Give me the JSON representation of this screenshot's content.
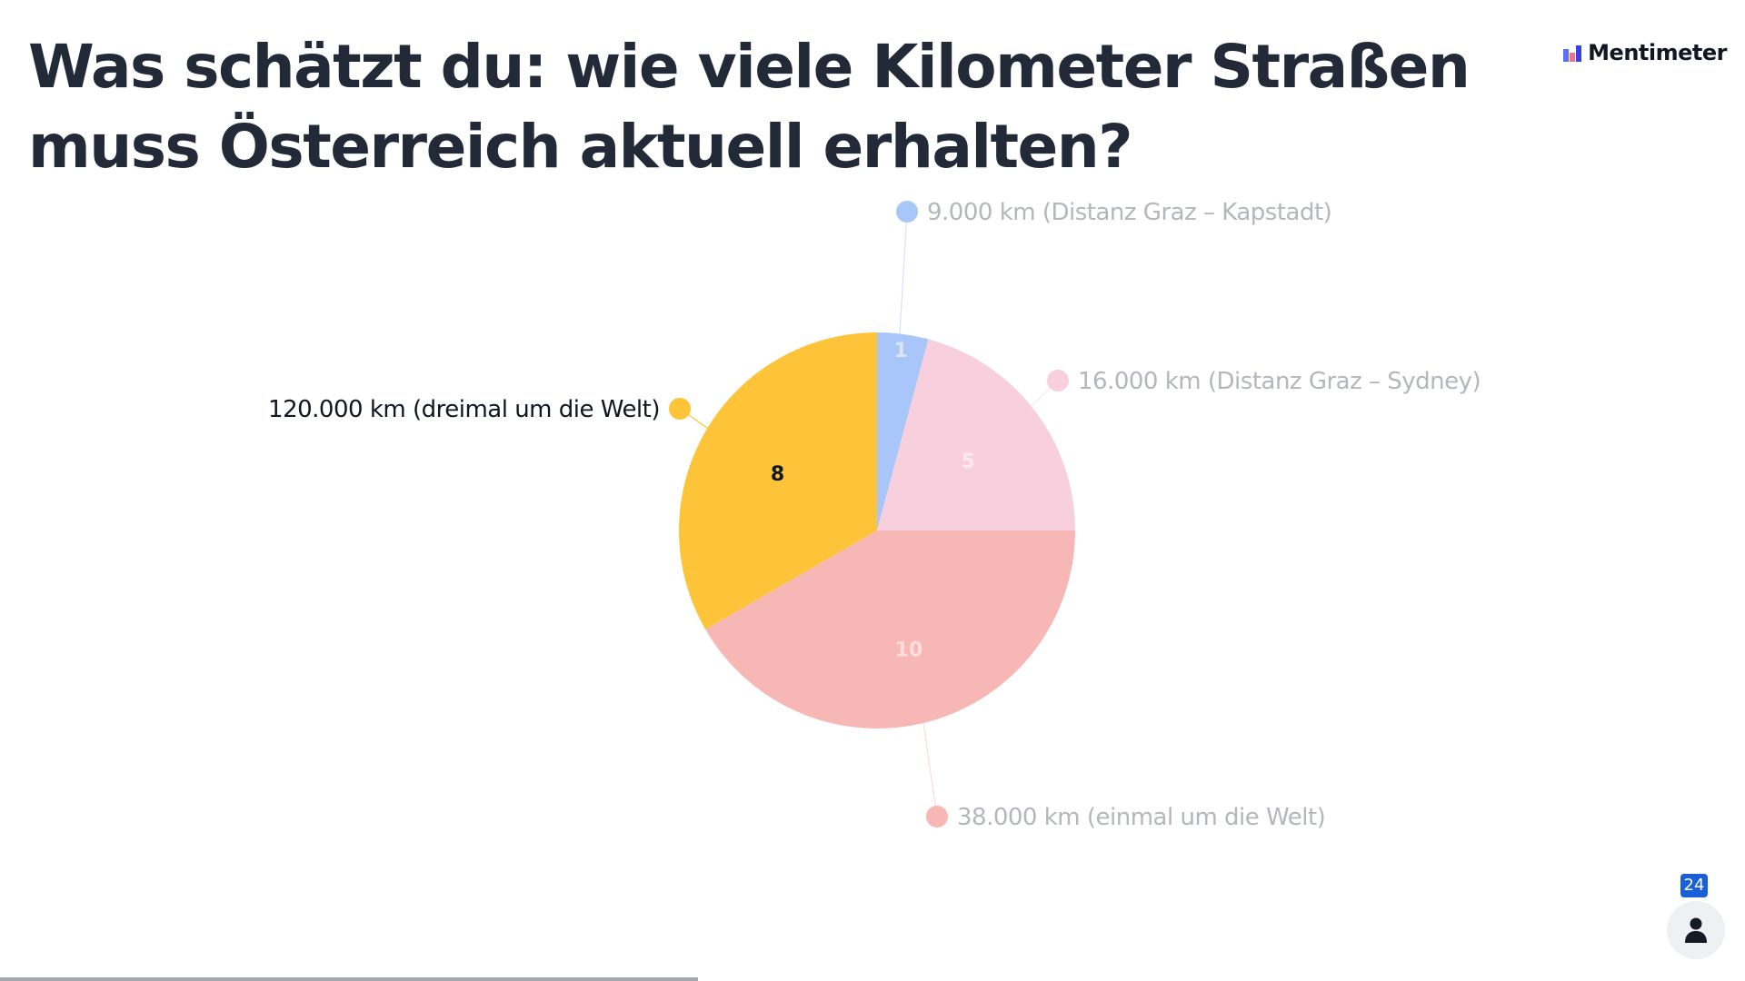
{
  "slide": {
    "title": "Was schätzt du: wie viele Kilometer Straßen muss Österreich aktuell erhalten?",
    "brand": "Mentimeter",
    "participants_count": "24",
    "progress": 0.4
  },
  "chart_data": {
    "type": "pie",
    "title": "",
    "slices": [
      {
        "label": "9.000 km (Distanz Graz – Kapstadt)",
        "value": 1,
        "color": "#a8c6fa"
      },
      {
        "label": "16.000 km (Distanz Graz – Sydney)",
        "value": 5,
        "color": "#f8cfdc"
      },
      {
        "label": "38.000 km (einmal um die Welt)",
        "value": 10,
        "color": "#f7b7b5"
      },
      {
        "label": "120.000 km (dreimal um die Welt)",
        "value": 8,
        "color": "#fdc43a"
      }
    ],
    "highlighted_slice": "120.000 km (dreimal um die Welt)"
  },
  "icons": {
    "participants": "person-icon",
    "brand": "mentimeter-logo-icon"
  }
}
